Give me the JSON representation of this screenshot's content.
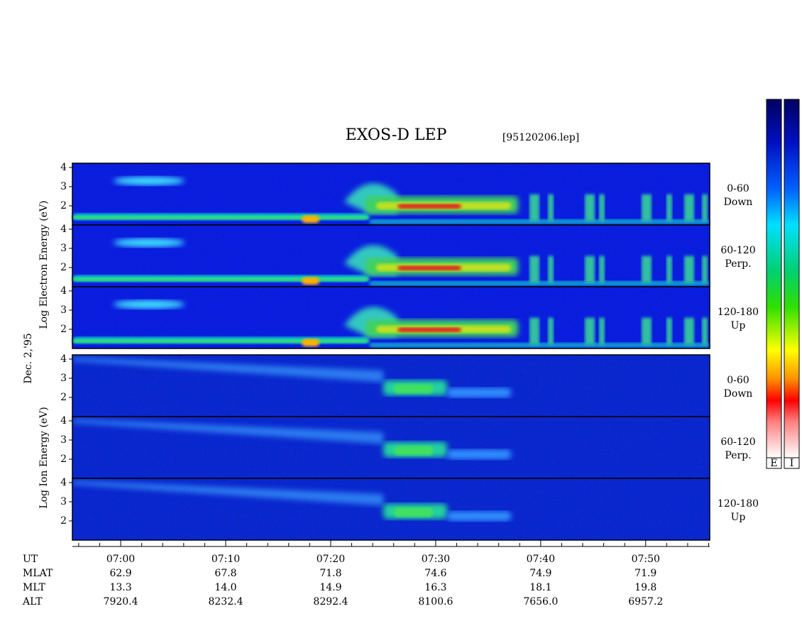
{
  "chart_data": {
    "type": "spectrogram",
    "title": "EXOS-D LEP",
    "file": "[95120206.lep]",
    "date": "Dec. 2,'95",
    "electron_ylabel": "Log  Electron  Energy (eV)",
    "ion_ylabel": "Log  Ion  Energy (eV)",
    "electron_panels": [
      {
        "lines": [
          "0-60",
          "Down"
        ]
      },
      {
        "lines": [
          "60-120",
          "Perp."
        ]
      },
      {
        "lines": [
          "120-180",
          "Up"
        ]
      }
    ],
    "ion_panels": [
      {
        "lines": [
          "0-60",
          "Down"
        ]
      },
      {
        "lines": [
          "60-120",
          "Perp."
        ]
      },
      {
        "lines": [
          "120-180",
          "Up"
        ]
      }
    ],
    "ylim": [
      1,
      4.22
    ],
    "yticks": [
      2,
      3,
      4
    ],
    "xlim": [
      415.4,
      476.1
    ],
    "xticks": [
      {
        "value": 420,
        "label": "07:00"
      },
      {
        "value": 430,
        "label": "07:10"
      },
      {
        "value": 440,
        "label": "07:20"
      },
      {
        "value": 450,
        "label": "07:30"
      },
      {
        "value": 460,
        "label": "07:40"
      },
      {
        "value": 470,
        "label": "07:50"
      }
    ],
    "xminorticks": [
      416,
      418,
      422,
      424,
      426,
      428,
      432,
      434,
      436,
      438,
      442,
      444,
      446,
      448,
      452,
      454,
      456,
      458,
      462,
      464,
      466,
      468,
      472,
      474,
      476
    ],
    "ut_label": "UT",
    "ephemeris": [
      {
        "name": "MLAT",
        "values": [
          "62.9",
          "67.8",
          "71.8",
          "74.6",
          "74.9",
          "71.9"
        ]
      },
      {
        "name": "MLT",
        "values": [
          "13.3",
          "14.0",
          "14.9",
          "16.3",
          "18.1",
          "19.8"
        ]
      },
      {
        "name": "ALT",
        "values": [
          "7920.4",
          "8232.4",
          "8292.4",
          "8100.6",
          "7656.0",
          "6957.2"
        ]
      }
    ],
    "colorbars": [
      "E",
      "I"
    ]
  }
}
